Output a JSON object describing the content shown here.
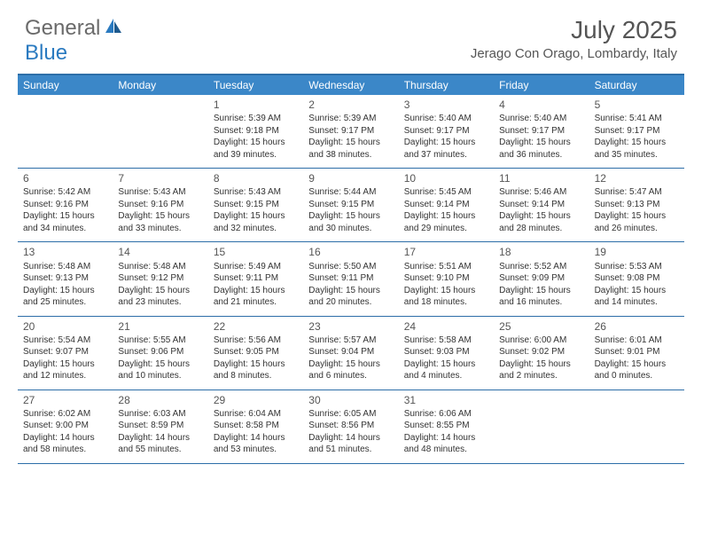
{
  "logo": {
    "general": "General",
    "blue": "Blue"
  },
  "title": "July 2025",
  "location": "Jerago Con Orago, Lombardy, Italy",
  "colors": {
    "header_bg": "#3b87c8",
    "border": "#2d6ea8",
    "text": "#333333",
    "title_text": "#555555",
    "logo_blue": "#2a7ac0",
    "background": "#ffffff"
  },
  "weekdays": [
    "Sunday",
    "Monday",
    "Tuesday",
    "Wednesday",
    "Thursday",
    "Friday",
    "Saturday"
  ],
  "weeks": [
    [
      null,
      null,
      {
        "n": "1",
        "sr": "5:39 AM",
        "ss": "9:18 PM",
        "d1": "15 hours",
        "d2": "and 39 minutes."
      },
      {
        "n": "2",
        "sr": "5:39 AM",
        "ss": "9:17 PM",
        "d1": "15 hours",
        "d2": "and 38 minutes."
      },
      {
        "n": "3",
        "sr": "5:40 AM",
        "ss": "9:17 PM",
        "d1": "15 hours",
        "d2": "and 37 minutes."
      },
      {
        "n": "4",
        "sr": "5:40 AM",
        "ss": "9:17 PM",
        "d1": "15 hours",
        "d2": "and 36 minutes."
      },
      {
        "n": "5",
        "sr": "5:41 AM",
        "ss": "9:17 PM",
        "d1": "15 hours",
        "d2": "and 35 minutes."
      }
    ],
    [
      {
        "n": "6",
        "sr": "5:42 AM",
        "ss": "9:16 PM",
        "d1": "15 hours",
        "d2": "and 34 minutes."
      },
      {
        "n": "7",
        "sr": "5:43 AM",
        "ss": "9:16 PM",
        "d1": "15 hours",
        "d2": "and 33 minutes."
      },
      {
        "n": "8",
        "sr": "5:43 AM",
        "ss": "9:15 PM",
        "d1": "15 hours",
        "d2": "and 32 minutes."
      },
      {
        "n": "9",
        "sr": "5:44 AM",
        "ss": "9:15 PM",
        "d1": "15 hours",
        "d2": "and 30 minutes."
      },
      {
        "n": "10",
        "sr": "5:45 AM",
        "ss": "9:14 PM",
        "d1": "15 hours",
        "d2": "and 29 minutes."
      },
      {
        "n": "11",
        "sr": "5:46 AM",
        "ss": "9:14 PM",
        "d1": "15 hours",
        "d2": "and 28 minutes."
      },
      {
        "n": "12",
        "sr": "5:47 AM",
        "ss": "9:13 PM",
        "d1": "15 hours",
        "d2": "and 26 minutes."
      }
    ],
    [
      {
        "n": "13",
        "sr": "5:48 AM",
        "ss": "9:13 PM",
        "d1": "15 hours",
        "d2": "and 25 minutes."
      },
      {
        "n": "14",
        "sr": "5:48 AM",
        "ss": "9:12 PM",
        "d1": "15 hours",
        "d2": "and 23 minutes."
      },
      {
        "n": "15",
        "sr": "5:49 AM",
        "ss": "9:11 PM",
        "d1": "15 hours",
        "d2": "and 21 minutes."
      },
      {
        "n": "16",
        "sr": "5:50 AM",
        "ss": "9:11 PM",
        "d1": "15 hours",
        "d2": "and 20 minutes."
      },
      {
        "n": "17",
        "sr": "5:51 AM",
        "ss": "9:10 PM",
        "d1": "15 hours",
        "d2": "and 18 minutes."
      },
      {
        "n": "18",
        "sr": "5:52 AM",
        "ss": "9:09 PM",
        "d1": "15 hours",
        "d2": "and 16 minutes."
      },
      {
        "n": "19",
        "sr": "5:53 AM",
        "ss": "9:08 PM",
        "d1": "15 hours",
        "d2": "and 14 minutes."
      }
    ],
    [
      {
        "n": "20",
        "sr": "5:54 AM",
        "ss": "9:07 PM",
        "d1": "15 hours",
        "d2": "and 12 minutes."
      },
      {
        "n": "21",
        "sr": "5:55 AM",
        "ss": "9:06 PM",
        "d1": "15 hours",
        "d2": "and 10 minutes."
      },
      {
        "n": "22",
        "sr": "5:56 AM",
        "ss": "9:05 PM",
        "d1": "15 hours",
        "d2": "and 8 minutes."
      },
      {
        "n": "23",
        "sr": "5:57 AM",
        "ss": "9:04 PM",
        "d1": "15 hours",
        "d2": "and 6 minutes."
      },
      {
        "n": "24",
        "sr": "5:58 AM",
        "ss": "9:03 PM",
        "d1": "15 hours",
        "d2": "and 4 minutes."
      },
      {
        "n": "25",
        "sr": "6:00 AM",
        "ss": "9:02 PM",
        "d1": "15 hours",
        "d2": "and 2 minutes."
      },
      {
        "n": "26",
        "sr": "6:01 AM",
        "ss": "9:01 PM",
        "d1": "15 hours",
        "d2": "and 0 minutes."
      }
    ],
    [
      {
        "n": "27",
        "sr": "6:02 AM",
        "ss": "9:00 PM",
        "d1": "14 hours",
        "d2": "and 58 minutes."
      },
      {
        "n": "28",
        "sr": "6:03 AM",
        "ss": "8:59 PM",
        "d1": "14 hours",
        "d2": "and 55 minutes."
      },
      {
        "n": "29",
        "sr": "6:04 AM",
        "ss": "8:58 PM",
        "d1": "14 hours",
        "d2": "and 53 minutes."
      },
      {
        "n": "30",
        "sr": "6:05 AM",
        "ss": "8:56 PM",
        "d1": "14 hours",
        "d2": "and 51 minutes."
      },
      {
        "n": "31",
        "sr": "6:06 AM",
        "ss": "8:55 PM",
        "d1": "14 hours",
        "d2": "and 48 minutes."
      },
      null,
      null
    ]
  ],
  "labels": {
    "sunrise": "Sunrise:",
    "sunset": "Sunset:",
    "daylight": "Daylight:"
  }
}
